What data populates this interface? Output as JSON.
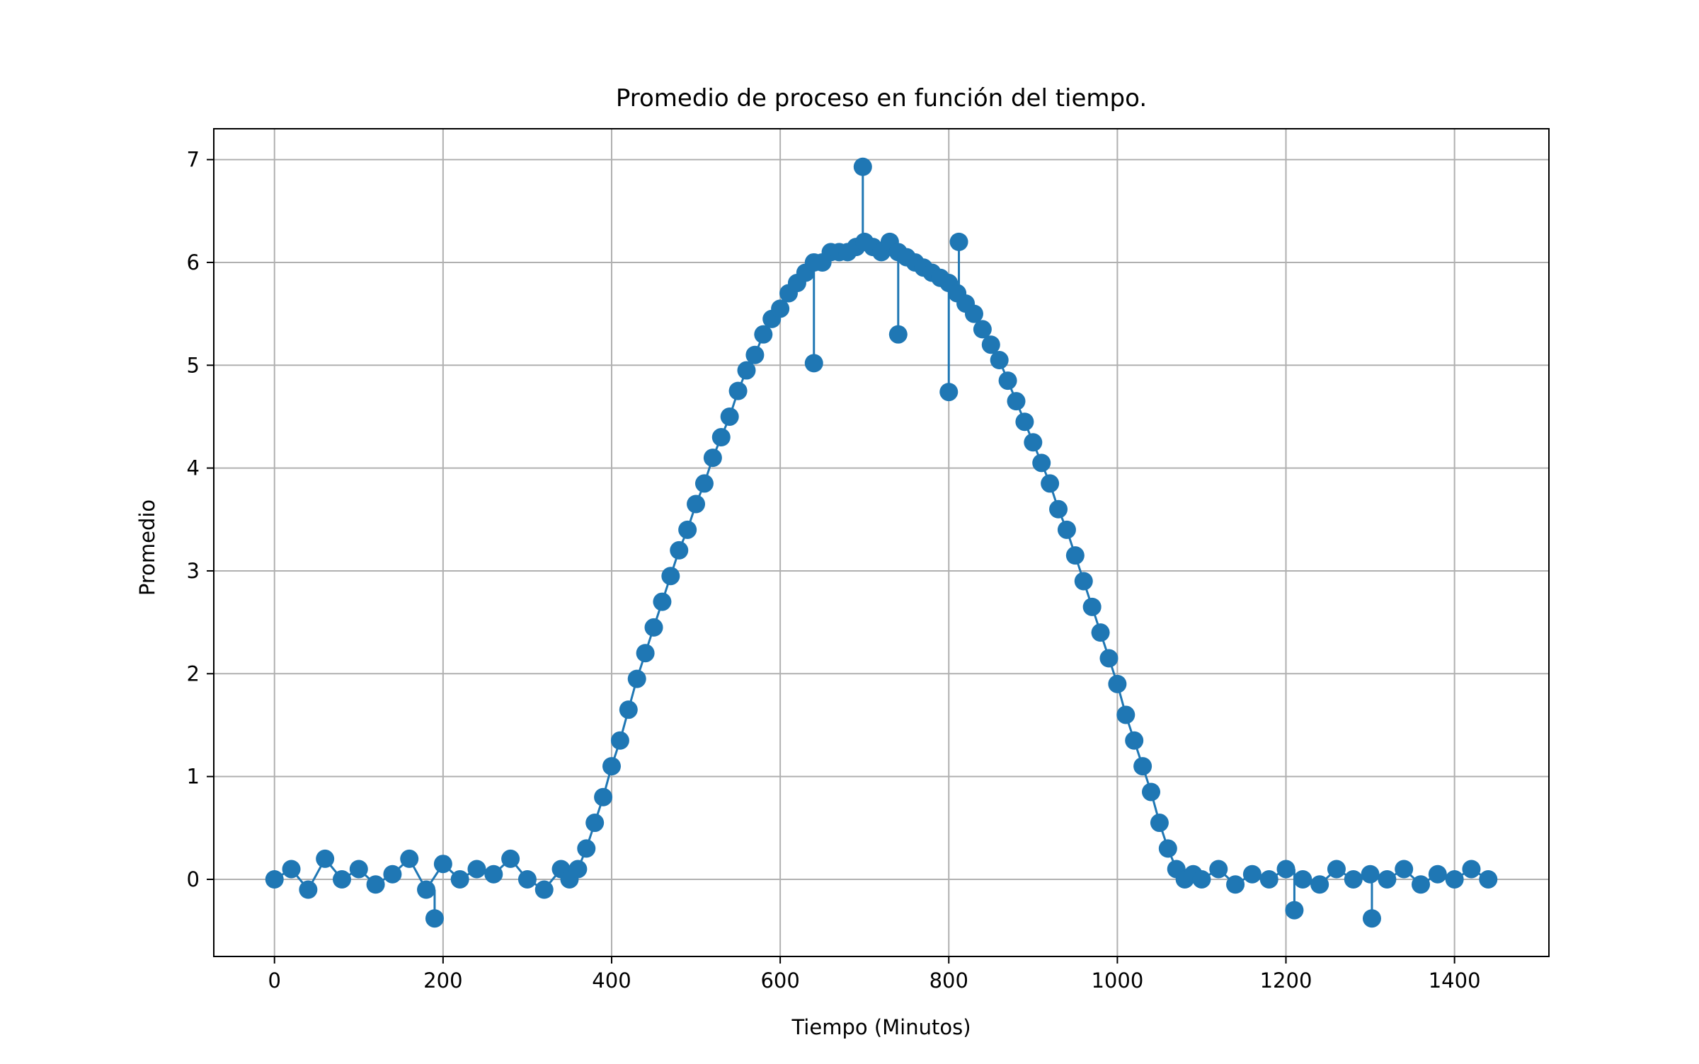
{
  "chart_data": {
    "type": "line",
    "title": "Promedio de proceso en función del tiempo.",
    "xlabel": "Tiempo (Minutos)",
    "ylabel": "Promedio",
    "xlim": [
      -72,
      1512
    ],
    "ylim": [
      -0.75,
      7.3
    ],
    "xticks": [
      0,
      200,
      400,
      600,
      800,
      1000,
      1200,
      1400
    ],
    "yticks": [
      0,
      1,
      2,
      3,
      4,
      5,
      6,
      7
    ],
    "xtick_labels": [
      "0",
      "200",
      "400",
      "600",
      "800",
      "1000",
      "1200",
      "1400"
    ],
    "ytick_labels": [
      "0",
      "1",
      "2",
      "3",
      "4",
      "5",
      "6",
      "7"
    ],
    "grid": true,
    "legend": "none",
    "marker": "circle",
    "color": "#1f77b4",
    "series": [
      {
        "x": [
          0,
          20,
          40,
          60,
          80,
          100,
          120,
          140,
          160,
          180,
          200,
          220,
          240,
          260,
          280,
          300,
          320,
          340,
          350,
          360,
          370,
          380,
          390,
          400,
          410,
          420,
          430,
          440,
          450,
          460,
          470,
          480,
          490,
          500,
          510,
          520,
          530,
          540,
          550,
          560,
          570,
          580,
          590,
          600,
          610,
          620,
          630,
          640,
          650,
          660,
          670,
          680,
          690,
          700,
          710,
          720,
          730,
          740,
          750,
          760,
          770,
          780,
          790,
          800,
          810,
          820,
          830,
          840,
          850,
          860,
          870,
          880,
          890,
          900,
          910,
          920,
          930,
          940,
          950,
          960,
          970,
          980,
          990,
          1000,
          1010,
          1020,
          1030,
          1040,
          1050,
          1060,
          1070,
          1080,
          1090,
          1100,
          1120,
          1140,
          1160,
          1180,
          1200,
          1220,
          1240,
          1260,
          1280,
          1300,
          1320,
          1340,
          1360,
          1380,
          1400,
          1420,
          1440
        ],
        "values": [
          0.0,
          0.1,
          -0.1,
          0.2,
          0.0,
          0.1,
          -0.05,
          0.05,
          0.2,
          -0.1,
          0.15,
          0.0,
          0.1,
          0.05,
          0.2,
          0.0,
          -0.1,
          0.1,
          0.0,
          0.1,
          0.3,
          0.55,
          0.8,
          1.1,
          1.35,
          1.65,
          1.95,
          2.2,
          2.45,
          2.7,
          2.95,
          3.2,
          3.4,
          3.65,
          3.85,
          4.1,
          4.3,
          4.5,
          4.75,
          4.95,
          5.1,
          5.3,
          5.45,
          5.55,
          5.7,
          5.8,
          5.9,
          6.0,
          6.0,
          6.1,
          6.1,
          6.1,
          6.15,
          6.2,
          6.15,
          6.1,
          6.2,
          6.1,
          6.05,
          6.0,
          5.95,
          5.9,
          5.85,
          5.8,
          5.7,
          5.6,
          5.5,
          5.35,
          5.2,
          5.05,
          4.85,
          4.65,
          4.45,
          4.25,
          4.05,
          3.85,
          3.6,
          3.4,
          3.15,
          2.9,
          2.65,
          2.4,
          2.15,
          1.9,
          1.6,
          1.35,
          1.1,
          0.85,
          0.55,
          0.3,
          0.1,
          0.0,
          0.05,
          0.0,
          0.1,
          -0.05,
          0.05,
          0.0,
          0.1,
          0.0,
          -0.05,
          0.1,
          0.0,
          0.05,
          0.0,
          0.1,
          -0.05,
          0.05,
          0.0,
          0.1,
          0.0
        ]
      }
    ],
    "outliers": {
      "x": [
        190,
        698,
        740,
        800,
        812,
        640,
        1210,
        1302
      ],
      "values": [
        -0.38,
        6.93,
        5.3,
        4.74,
        6.2,
        5.02,
        -0.3,
        -0.38
      ]
    }
  }
}
